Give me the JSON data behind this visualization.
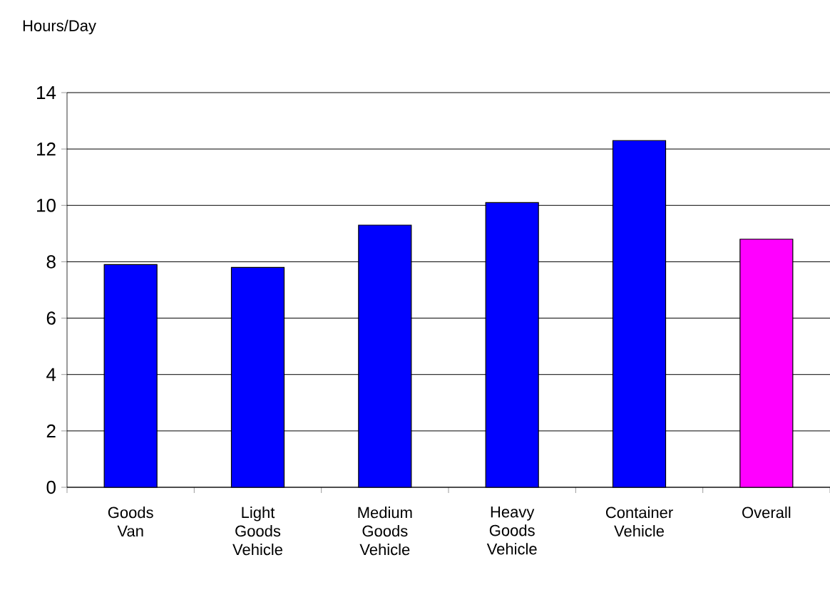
{
  "chart_data": {
    "type": "bar",
    "ylabel": "Hours/Day",
    "categories": [
      "Goods Van",
      "Light Goods Vehicle",
      "Medium Goods Vehicle",
      "Heavy Goods Vehicle",
      "Container Vehicle",
      "Overall"
    ],
    "values": [
      7.9,
      7.8,
      9.3,
      10.1,
      12.3,
      8.8
    ],
    "colors": [
      "#0000ff",
      "#0000ff",
      "#0000ff",
      "#0000ff",
      "#0000ff",
      "#ff00ff"
    ],
    "ylim": [
      0,
      14
    ],
    "yticks": [
      0,
      2,
      4,
      6,
      8,
      10,
      12,
      14
    ],
    "grid": "y"
  }
}
